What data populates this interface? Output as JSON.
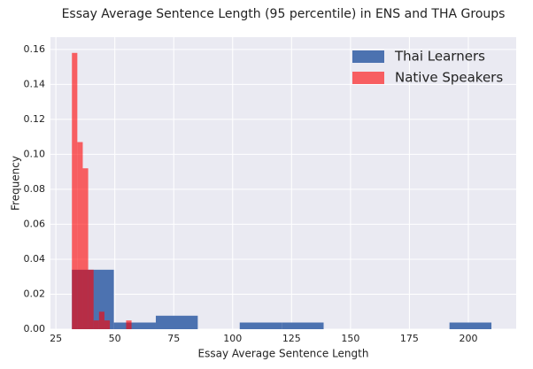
{
  "chart_data": {
    "type": "histogram",
    "title": "Essay Average Sentence Length (95 percentile) in ENS and THA Groups",
    "xlabel": "Essay Average Sentence Length",
    "ylabel": "Frequency",
    "series": [
      {
        "name": "Thai Learners",
        "color": "#4c72b0",
        "opacity": 1,
        "bins": [
          31.8,
          49.6,
          67.4,
          85.2,
          103,
          120.8,
          138.6,
          156.4,
          174.2,
          192,
          209.8
        ],
        "values": [
          0.034,
          0.0038,
          0.0077,
          0,
          0.0038,
          0.0038,
          0,
          0,
          0,
          0.0038
        ]
      },
      {
        "name": "Native Speakers",
        "color": "#ff0000",
        "opacity": 0.6,
        "bins": [
          31.8,
          34.1,
          36.4,
          38.7,
          41.0,
          43.3,
          45.6,
          47.9,
          50.2,
          52.5,
          54.8,
          57.1
        ],
        "values": [
          0.158,
          0.107,
          0.092,
          0.034,
          0.005,
          0.01,
          0.005,
          0,
          0,
          0,
          0.005
        ]
      }
    ],
    "xlim": [
      22.7,
      220.3
    ],
    "ylim": [
      0,
      0.167
    ],
    "xticks": [
      25,
      50,
      75,
      100,
      125,
      150,
      175,
      200
    ],
    "yticks": [
      {
        "value": 0,
        "label": "0.00"
      },
      {
        "value": 0.02,
        "label": "0.02"
      },
      {
        "value": 0.04,
        "label": "0.04"
      },
      {
        "value": 0.06,
        "label": "0.06"
      },
      {
        "value": 0.08,
        "label": "0.08"
      },
      {
        "value": 0.1,
        "label": "0.10"
      },
      {
        "value": 0.12,
        "label": "0.12"
      },
      {
        "value": 0.14,
        "label": "0.14"
      },
      {
        "value": 0.16,
        "label": "0.16"
      }
    ],
    "grid": true,
    "legend": "upper right"
  }
}
